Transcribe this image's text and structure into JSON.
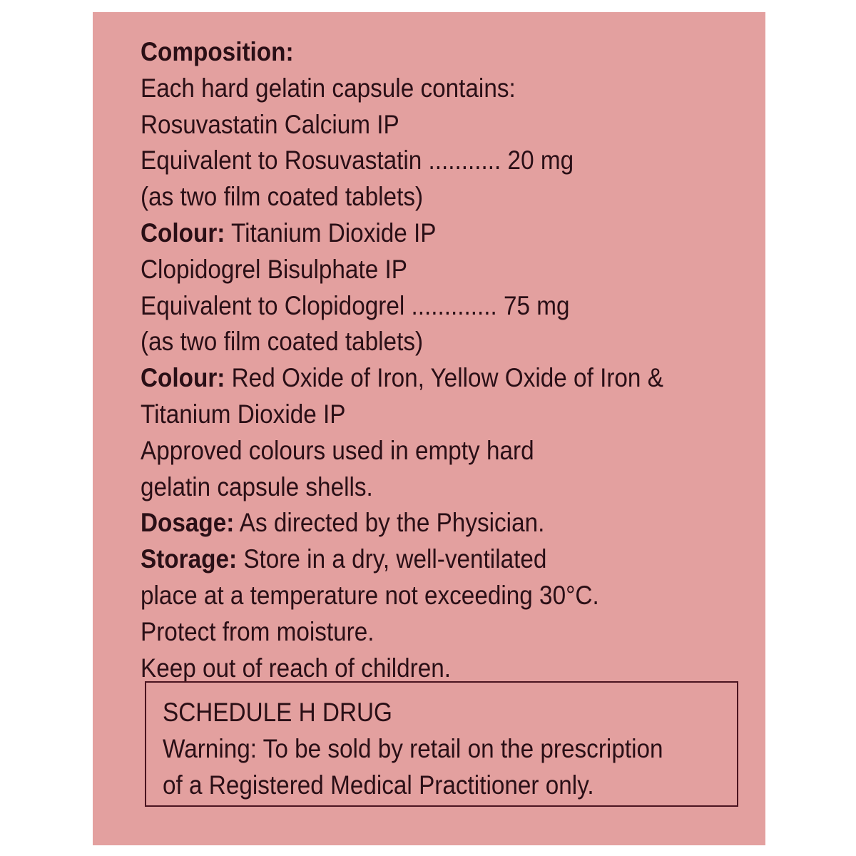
{
  "colors": {
    "background": "#e3a09f",
    "text": "#2a0f16",
    "border": "#4a1420"
  },
  "composition": {
    "heading": "Composition:",
    "lines": [
      "Each hard gelatin capsule contains:",
      "Rosuvastatin Calcium IP",
      "Equivalent to Rosuvastatin ........... 20 mg",
      "(as two film coated tablets)"
    ],
    "colour1_label": "Colour:",
    "colour1_value": " Titanium Dioxide IP",
    "lines2": [
      "Clopidogrel Bisulphate IP",
      "Equivalent to Clopidogrel ............. 75 mg",
      "(as two film coated tablets)"
    ],
    "colour2_label": "Colour:",
    "colour2_value": " Red Oxide of Iron, Yellow Oxide of Iron &",
    "lines3": [
      "Titanium Dioxide IP",
      "Approved colours used in empty hard",
      "gelatin capsule shells."
    ],
    "dosage_label": "Dosage:",
    "dosage_value": " As directed by the Physician.",
    "storage_label": "Storage:",
    "storage_value": " Store in a dry, well-ventilated",
    "lines4": [
      "place at a temperature not exceeding 30°C.",
      "Protect from moisture.",
      "Keep out of reach of children."
    ]
  },
  "schedule": {
    "title": "SCHEDULE H DRUG",
    "warning_lines": [
      "Warning: To be sold by retail on the prescription",
      "of a Registered Medical Practitioner only."
    ]
  }
}
